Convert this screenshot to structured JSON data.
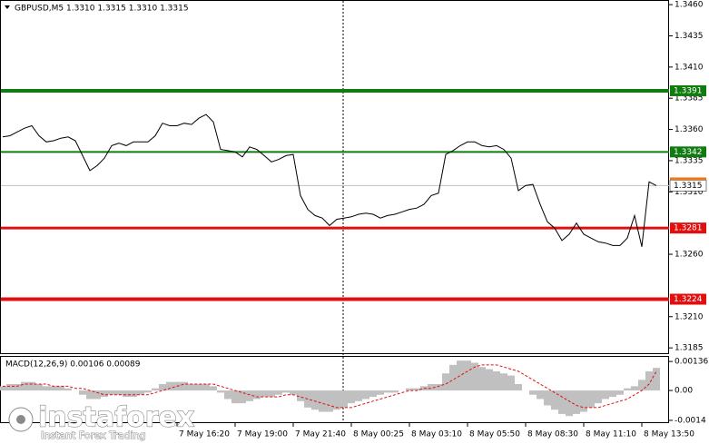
{
  "chart_data": [
    {
      "type": "line",
      "title": "GBPUSD,M5  1.3310 1.3315 1.3310 1.3315",
      "color": "#000000",
      "categories": [
        null,
        null,
        null,
        null,
        null,
        null,
        null,
        null,
        null,
        null,
        null,
        null,
        null,
        null,
        null,
        null,
        null,
        null,
        null,
        null,
        null,
        null,
        null,
        null,
        "7 May 16:20",
        null,
        null,
        null,
        null,
        null,
        null,
        null,
        "7 May 19:00",
        null,
        null,
        null,
        null,
        null,
        null,
        null,
        "7 May 21:40",
        null,
        null,
        null,
        null,
        null,
        null,
        null,
        "8 May 00:25",
        null,
        null,
        null,
        null,
        null,
        null,
        null,
        "8 May 03:10",
        null,
        null,
        null,
        null,
        null,
        null,
        null,
        "8 May 05:50",
        null,
        null,
        null,
        null,
        null,
        null,
        null,
        "8 May 08:30",
        null,
        null,
        null,
        null,
        null,
        null,
        null,
        "8 May 11:10",
        null,
        null,
        null,
        null,
        null,
        null,
        null,
        "8 May 13:50",
        null,
        null
      ],
      "values": [
        1.3354,
        1.3355,
        1.3358,
        1.3361,
        1.3363,
        1.3355,
        1.335,
        1.3351,
        1.3353,
        1.3354,
        1.3351,
        1.3339,
        1.3327,
        1.3331,
        1.3337,
        1.3347,
        1.3349,
        1.3347,
        1.335,
        1.335,
        1.335,
        1.3355,
        1.3365,
        1.3363,
        1.3363,
        1.3365,
        1.3364,
        1.3369,
        1.3372,
        1.3366,
        1.3344,
        1.3343,
        1.3342,
        1.3338,
        1.3346,
        1.3344,
        1.3339,
        1.3334,
        1.3336,
        1.3339,
        1.334,
        1.3307,
        1.3296,
        1.3291,
        1.3289,
        1.3283,
        1.3288,
        1.3289,
        1.329,
        1.3292,
        1.3293,
        1.3292,
        1.3289,
        1.3291,
        1.3292,
        1.3294,
        1.3296,
        1.3297,
        1.33,
        1.3307,
        1.3309,
        1.334,
        1.3343,
        1.3347,
        1.335,
        1.335,
        1.3347,
        1.3346,
        1.3347,
        1.3344,
        1.3337,
        1.3311,
        1.3315,
        1.3316,
        1.33,
        1.3286,
        1.3281,
        1.3271,
        1.3276,
        1.3285,
        1.3276,
        1.3273,
        1.327,
        1.3269,
        1.3267,
        1.3267,
        1.3273,
        1.3291,
        1.3266,
        1.3318,
        1.3315
      ],
      "ylim": [
        1.318,
        1.3463
      ],
      "yticks": [
        {
          "value": 1.346,
          "label": "1.3460"
        },
        1.3435,
        {
          "value": 1.341,
          "label": "1.3410"
        },
        1.3385,
        {
          "value": 1.336,
          "label": "1.3360"
        },
        1.3335,
        {
          "value": 1.331,
          "label": "1.3310"
        },
        {
          "value": 1.326,
          "label": "1.3260"
        },
        {
          "value": 1.321,
          "label": "1.3210"
        },
        1.3185
      ],
      "levels": [
        {
          "value": 1.3391,
          "color": "#107c10",
          "width": 4
        },
        {
          "value": 1.3342,
          "color": "#107c10",
          "width": 2
        },
        {
          "value": 1.3281,
          "color": "#e01010",
          "width": 3
        },
        {
          "value": 1.3224,
          "color": "#e01010",
          "width": 4
        }
      ],
      "current_price": 1.3315,
      "watermark": {
        "brand": "instaforex",
        "tagline": "Instant Forex Trading"
      }
    },
    {
      "type": "macd",
      "title": "MACD(12,26,9) 0.00106 0.00089",
      "color": "#c0c0c0",
      "values": [
        0.0002,
        0.0003,
        0.0003,
        0.0004,
        0.0004,
        0.0003,
        0.0002,
        0.0002,
        0.0002,
        0.0001,
        0,
        -0.0002,
        -0.0004,
        -0.0004,
        -0.0003,
        -0.0002,
        -0.0002,
        -0.0003,
        -0.0003,
        -0.0002,
        -0.0001,
        0.0001,
        0.0003,
        0.0004,
        0.0004,
        0.0004,
        0.0003,
        0.0003,
        0.0003,
        0.0002,
        -0.0001,
        -0.0004,
        -0.0006,
        -0.0006,
        -0.0005,
        -0.0004,
        -0.0003,
        -0.0003,
        -0.0002,
        -0.0001,
        -0.0002,
        -0.0005,
        -0.0008,
        -0.0009,
        -0.001,
        -0.001,
        -0.0009,
        -0.0008,
        -0.0006,
        -0.0005,
        -0.0004,
        -0.0003,
        -0.0002,
        -0.0001,
        -0.0001,
        0,
        0.0001,
        0.0001,
        0.0002,
        0.0003,
        0.0003,
        0.0008,
        0.0012,
        0.0014,
        0.0014,
        0.0013,
        0.0011,
        0.001,
        0.0009,
        0.0008,
        0.0007,
        0.0003,
        0,
        -0.0002,
        -0.0004,
        -0.0007,
        -0.0009,
        -0.0011,
        -0.0012,
        -0.0011,
        -0.001,
        -0.0008,
        -0.0006,
        -0.0004,
        -0.0003,
        -0.0002,
        0.0001,
        0.0002,
        0.0005,
        0.0009,
        0.00106
      ],
      "signal": [
        0.0002,
        0.0002,
        0.0002,
        0.0003,
        0.0003,
        0.0003,
        0.0003,
        0.0002,
        0.0002,
        0.0002,
        0.0001,
        0.0001,
        0,
        -0.0001,
        -0.0002,
        -0.0002,
        -0.0002,
        -0.0002,
        -0.0002,
        -0.0002,
        -0.0002,
        -0.0001,
        0,
        0.0001,
        0.0002,
        0.0003,
        0.0003,
        0.0003,
        0.0003,
        0.0003,
        0.0002,
        0.0001,
        0,
        -0.0001,
        -0.0002,
        -0.0003,
        -0.0003,
        -0.0003,
        -0.0003,
        -0.0002,
        -0.0002,
        -0.0003,
        -0.0004,
        -0.0005,
        -0.0006,
        -0.0007,
        -0.0008,
        -0.0008,
        -0.0008,
        -0.0007,
        -0.0006,
        -0.0005,
        -0.0004,
        -0.0003,
        -0.0002,
        -0.0001,
        0,
        0,
        0.0001,
        0.0001,
        0.0002,
        0.0003,
        0.0005,
        0.0007,
        0.0009,
        0.0011,
        0.0012,
        0.0012,
        0.0012,
        0.0011,
        0.001,
        0.0009,
        0.0007,
        0.0005,
        0.0003,
        0.0001,
        -0.0001,
        -0.0003,
        -0.0005,
        -0.0007,
        -0.0008,
        -0.0008,
        -0.0008,
        -0.0007,
        -0.0006,
        -0.0005,
        -0.0004,
        -0.0002,
        0,
        0.0003,
        0.00089
      ],
      "signal_color": "#e01010",
      "ylim": [
        -0.00153,
        0.00162
      ],
      "yticks": [
        0.00136,
        {
          "value": 0,
          "label": "0.00"
        },
        -0.0014
      ]
    }
  ]
}
